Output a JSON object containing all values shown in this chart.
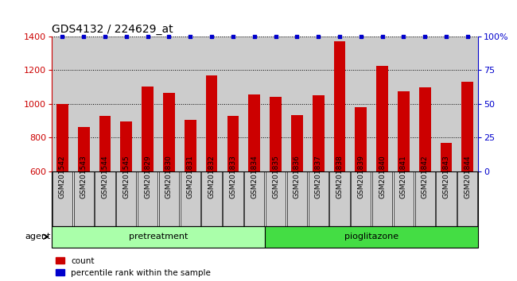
{
  "title": "GDS4132 / 224629_at",
  "samples": [
    "GSM201542",
    "GSM201543",
    "GSM201544",
    "GSM201545",
    "GSM201829",
    "GSM201830",
    "GSM201831",
    "GSM201832",
    "GSM201833",
    "GSM201834",
    "GSM201835",
    "GSM201836",
    "GSM201837",
    "GSM201838",
    "GSM201839",
    "GSM201840",
    "GSM201841",
    "GSM201842",
    "GSM201843",
    "GSM201844"
  ],
  "counts": [
    1000,
    865,
    930,
    895,
    1105,
    1065,
    905,
    1170,
    930,
    1055,
    1040,
    935,
    1050,
    1370,
    980,
    1225,
    1075,
    1100,
    770,
    1130
  ],
  "percentile": [
    100,
    100,
    100,
    100,
    100,
    100,
    100,
    100,
    100,
    100,
    100,
    100,
    100,
    100,
    100,
    100,
    100,
    100,
    100,
    100
  ],
  "bar_color": "#cc0000",
  "dot_color": "#0000cc",
  "ylim_left": [
    600,
    1400
  ],
  "ylim_right": [
    0,
    100
  ],
  "yticks_left": [
    600,
    800,
    1000,
    1200,
    1400
  ],
  "yticks_right": [
    0,
    25,
    50,
    75,
    100
  ],
  "ytick_labels_right": [
    "0",
    "25",
    "50",
    "75",
    "100%"
  ],
  "groups": [
    {
      "label": "pretreatment",
      "start": 0,
      "end": 10,
      "color": "#aaffaa"
    },
    {
      "label": "pioglitazone",
      "start": 10,
      "end": 20,
      "color": "#44dd44"
    }
  ],
  "agent_label": "agent",
  "legend_count_label": "count",
  "legend_pct_label": "percentile rank within the sample",
  "bg_color": "#cccccc",
  "plot_bg": "#ffffff",
  "title_fontsize": 10,
  "tick_fontsize": 6.5,
  "bar_width": 0.55
}
